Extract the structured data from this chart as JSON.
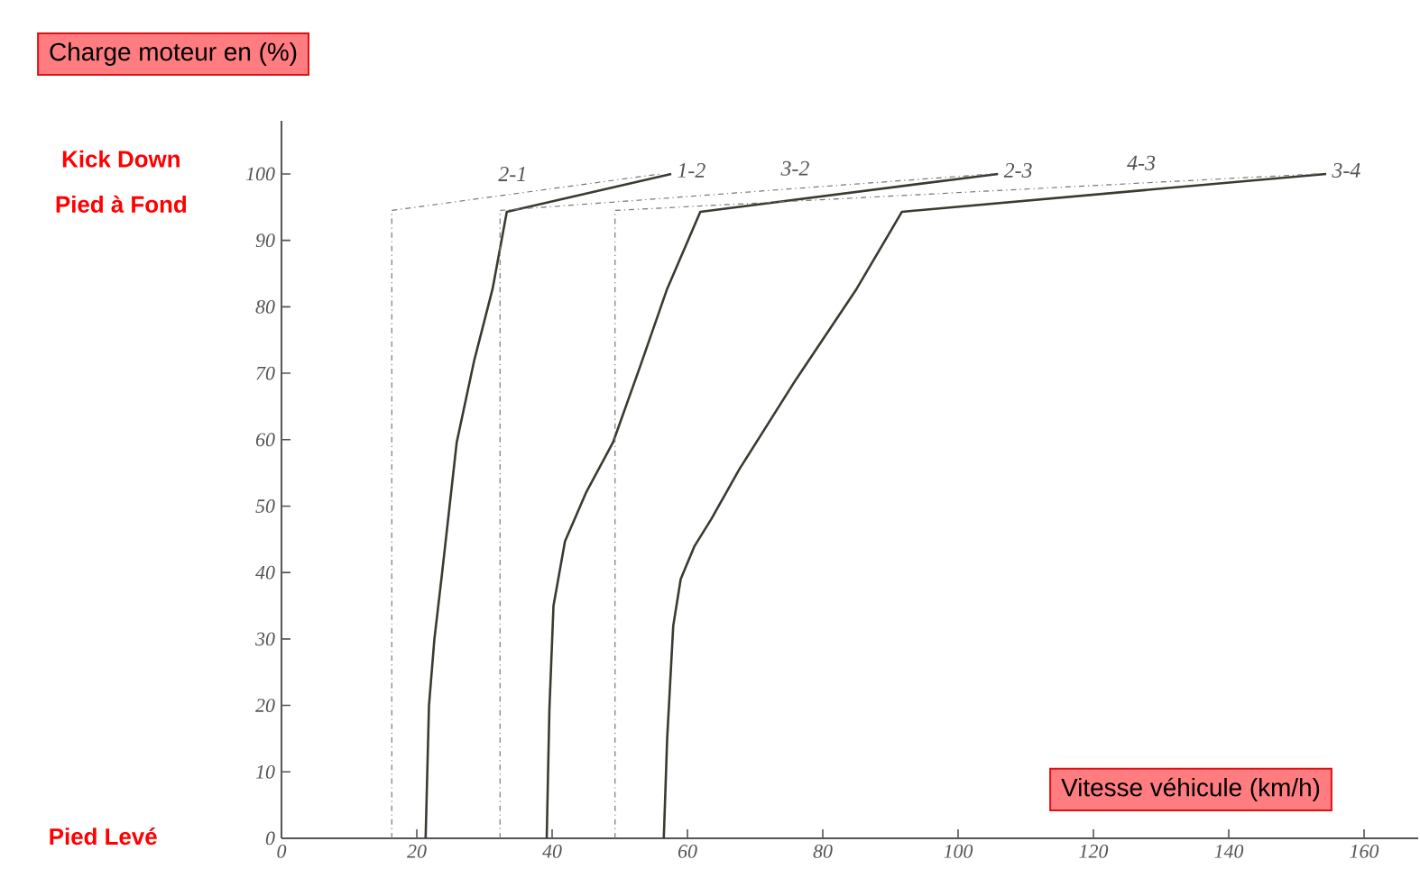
{
  "chart_data": {
    "type": "line",
    "xlabel": "Vitesse véhicule (km/h)",
    "ylabel": "Charge moteur en (%)",
    "xlim": [
      0,
      168
    ],
    "ylim": [
      0,
      108
    ],
    "xticks": [
      0,
      20,
      40,
      60,
      80,
      100,
      120,
      140,
      160
    ],
    "yticks": [
      0,
      10,
      20,
      30,
      40,
      50,
      60,
      70,
      80,
      90,
      100
    ],
    "grid": false,
    "marker": "none",
    "series": [
      {
        "name": "1-2",
        "color": "#3a3a30",
        "line_style": "solid",
        "x": [
          21.3,
          21.8,
          22.6,
          23.7,
          25.9,
          28.5,
          31.2,
          33.3,
          57.6
        ],
        "values": [
          0,
          20,
          30,
          39.6,
          59.6,
          72,
          82.7,
          94.3,
          100
        ]
      },
      {
        "name": "2-3",
        "color": "#3a3a30",
        "line_style": "solid",
        "x": [
          39.2,
          39.4,
          39.6,
          40.2,
          41.9,
          45,
          49,
          53,
          57,
          61.9,
          105.9
        ],
        "values": [
          0,
          10,
          19.5,
          35,
          44.7,
          52,
          59.6,
          71,
          82.7,
          94.3,
          100
        ]
      },
      {
        "name": "3-4",
        "color": "#3a3a30",
        "line_style": "solid",
        "x": [
          56.5,
          57,
          57.9,
          59,
          61,
          63.5,
          67.7,
          76,
          85,
          91.7,
          154.4
        ],
        "values": [
          0,
          15,
          32,
          39,
          43.9,
          48,
          55.6,
          69,
          82.7,
          94.3,
          100
        ]
      },
      {
        "name": "2-1",
        "color": "#777777",
        "line_style": "dashed",
        "x": [
          16.3,
          16.3,
          56
        ],
        "values": [
          0,
          94.5,
          100
        ]
      },
      {
        "name": "3-2",
        "color": "#777777",
        "line_style": "dashed",
        "x": [
          32.3,
          32.3,
          105
        ],
        "values": [
          0,
          94.5,
          100
        ]
      },
      {
        "name": "4-3",
        "color": "#777777",
        "line_style": "dashed",
        "x": [
          49.3,
          49.3,
          153
        ],
        "values": [
          0,
          94.5,
          100
        ]
      }
    ],
    "annotations": [
      "Kick Down",
      "Pied à Fond",
      "Pied Levé"
    ]
  }
}
